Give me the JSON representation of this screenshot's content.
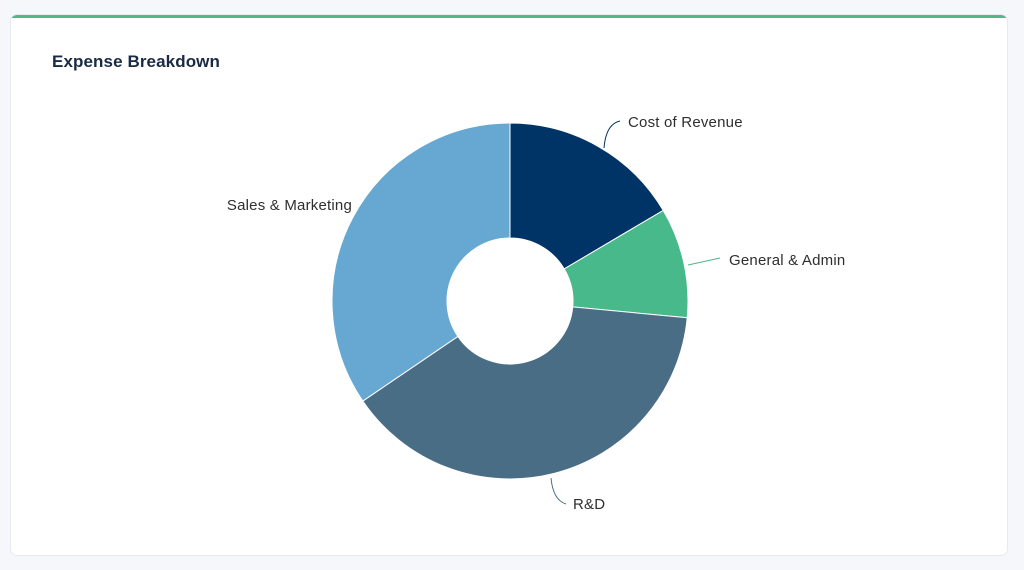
{
  "card": {
    "title": "Expense Breakdown",
    "accent_color": "#4fb98a"
  },
  "chart_data": {
    "type": "pie",
    "variant": "donut",
    "title": "Expense Breakdown",
    "start_angle_deg": 0,
    "direction": "clockwise",
    "slices": [
      {
        "label": "Cost of Revenue",
        "value": 16.5,
        "color": "#003366"
      },
      {
        "label": "General & Admin",
        "value": 10.0,
        "color": "#48b98a"
      },
      {
        "label": "R&D",
        "value": 39.0,
        "color": "#4a6d86"
      },
      {
        "label": "Sales & Marketing",
        "value": 34.5,
        "color": "#66a8d2"
      }
    ]
  }
}
